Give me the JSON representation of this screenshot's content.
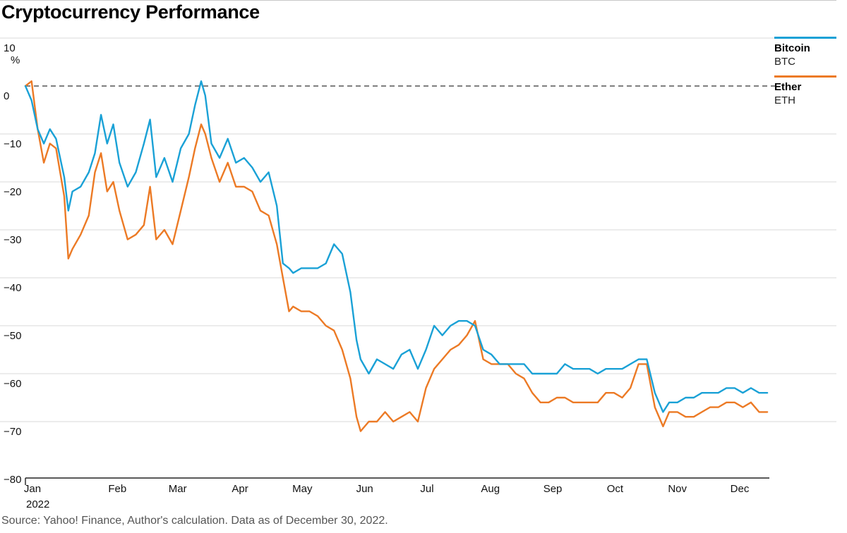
{
  "title": "Cryptocurrency Performance",
  "source": "Source: Yahoo! Finance, Author's calculation. Data as of December 30, 2022.",
  "colors": {
    "btc": "#1aa1d6",
    "eth": "#ec7a25",
    "grid": "#d9d9d9",
    "zero": "#555555",
    "axis": "#222222"
  },
  "legend": [
    {
      "name": "Bitcoin",
      "ticker": "BTC",
      "color": "#1aa1d6"
    },
    {
      "name": "Ether",
      "ticker": "ETH",
      "color": "#ec7a25"
    }
  ],
  "chart_data": {
    "type": "line",
    "y_unit": "%",
    "ylim": [
      -80,
      10
    ],
    "y_ticks": [
      10,
      0,
      -10,
      -20,
      -30,
      -40,
      -50,
      -60,
      -70,
      -80
    ],
    "y_tick_labels": [
      "10",
      "0",
      "−10",
      "−20",
      "−30",
      "−40",
      "−50",
      "−60",
      "−70",
      "−80"
    ],
    "x_tick_labels": [
      "Jan",
      "Feb",
      "Mar",
      "Apr",
      "May",
      "Jun",
      "Jul",
      "Aug",
      "Sep",
      "Oct",
      "Nov",
      "Dec"
    ],
    "x_sublabel": "2022",
    "x": [
      "2022-01-01",
      "2022-01-04",
      "2022-01-07",
      "2022-01-10",
      "2022-01-13",
      "2022-01-16",
      "2022-01-20",
      "2022-01-22",
      "2022-01-24",
      "2022-01-28",
      "2022-02-01",
      "2022-02-04",
      "2022-02-07",
      "2022-02-10",
      "2022-02-13",
      "2022-02-16",
      "2022-02-20",
      "2022-02-24",
      "2022-02-28",
      "2022-03-03",
      "2022-03-06",
      "2022-03-10",
      "2022-03-14",
      "2022-03-18",
      "2022-03-22",
      "2022-03-25",
      "2022-03-28",
      "2022-03-30",
      "2022-04-02",
      "2022-04-06",
      "2022-04-10",
      "2022-04-14",
      "2022-04-18",
      "2022-04-22",
      "2022-04-26",
      "2022-04-30",
      "2022-05-04",
      "2022-05-07",
      "2022-05-10",
      "2022-05-12",
      "2022-05-16",
      "2022-05-20",
      "2022-05-24",
      "2022-05-28",
      "2022-06-01",
      "2022-06-05",
      "2022-06-09",
      "2022-06-12",
      "2022-06-14",
      "2022-06-18",
      "2022-06-22",
      "2022-06-26",
      "2022-06-30",
      "2022-07-04",
      "2022-07-08",
      "2022-07-12",
      "2022-07-16",
      "2022-07-20",
      "2022-07-24",
      "2022-07-28",
      "2022-08-01",
      "2022-08-05",
      "2022-08-09",
      "2022-08-13",
      "2022-08-17",
      "2022-08-21",
      "2022-08-25",
      "2022-08-29",
      "2022-09-02",
      "2022-09-06",
      "2022-09-10",
      "2022-09-14",
      "2022-09-18",
      "2022-09-22",
      "2022-09-26",
      "2022-09-30",
      "2022-10-04",
      "2022-10-08",
      "2022-10-12",
      "2022-10-16",
      "2022-10-20",
      "2022-10-24",
      "2022-10-28",
      "2022-11-01",
      "2022-11-05",
      "2022-11-08",
      "2022-11-09",
      "2022-11-12",
      "2022-11-16",
      "2022-11-20",
      "2022-11-24",
      "2022-11-28",
      "2022-12-02",
      "2022-12-06",
      "2022-12-10",
      "2022-12-14",
      "2022-12-18",
      "2022-12-22",
      "2022-12-26",
      "2022-12-30"
    ],
    "series": [
      {
        "name": "Bitcoin",
        "color": "#1aa1d6",
        "values": [
          0,
          -3,
          -9,
          -12,
          -9,
          -11,
          -19,
          -26,
          -22,
          -21,
          -18,
          -14,
          -6,
          -12,
          -8,
          -16,
          -21,
          -18,
          -12,
          -7,
          -19,
          -15,
          -20,
          -13,
          -10,
          -4,
          1,
          -2,
          -12,
          -15,
          -11,
          -16,
          -15,
          -17,
          -20,
          -18,
          -25,
          -37,
          -38,
          -39,
          -38,
          -38,
          -38,
          -37,
          -33,
          -35,
          -43,
          -53,
          -57,
          -60,
          -57,
          -58,
          -59,
          -56,
          -55,
          -59,
          -55,
          -50,
          -52,
          -50,
          -49,
          -49,
          -50,
          -55,
          -56,
          -58,
          -58,
          -58,
          -58,
          -60,
          -60,
          -60,
          -60,
          -58,
          -59,
          -59,
          -59,
          -60,
          -59,
          -59,
          -59,
          -58,
          -57,
          -57,
          -64,
          -67,
          -68,
          -66,
          -66,
          -65,
          -65,
          -64,
          -64,
          -64,
          -63,
          -63,
          -64,
          -63,
          -64,
          -64
        ]
      },
      {
        "name": "Ether",
        "color": "#ec7a25",
        "values": [
          0,
          1,
          -9,
          -16,
          -12,
          -13,
          -23,
          -36,
          -34,
          -31,
          -27,
          -18,
          -14,
          -22,
          -20,
          -26,
          -32,
          -31,
          -29,
          -21,
          -32,
          -30,
          -33,
          -26,
          -19,
          -13,
          -8,
          -10,
          -15,
          -20,
          -16,
          -21,
          -21,
          -22,
          -26,
          -27,
          -33,
          -40,
          -47,
          -46,
          -47,
          -47,
          -48,
          -50,
          -51,
          -55,
          -61,
          -69,
          -72,
          -70,
          -70,
          -68,
          -70,
          -69,
          -68,
          -70,
          -63,
          -59,
          -57,
          -55,
          -54,
          -52,
          -49,
          -57,
          -58,
          -58,
          -58,
          -60,
          -61,
          -64,
          -66,
          -66,
          -65,
          -65,
          -66,
          -66,
          -66,
          -66,
          -64,
          -64,
          -65,
          -63,
          -58,
          -58,
          -67,
          -70,
          -71,
          -68,
          -68,
          -69,
          -69,
          -68,
          -67,
          -67,
          -66,
          -66,
          -67,
          -66,
          -68,
          -68
        ]
      }
    ]
  }
}
